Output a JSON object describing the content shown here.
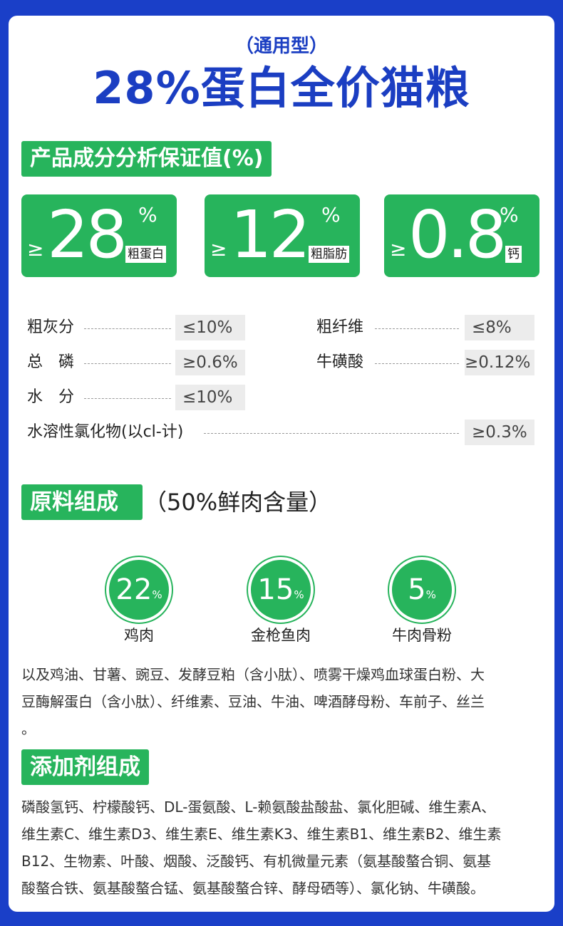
{
  "header": {
    "subtitle": "（通用型）",
    "title": "28%蛋白全价猫粮"
  },
  "analysis": {
    "tag": "产品成分分析保证值(%)",
    "highlights": [
      {
        "ge": "≥",
        "value": "28",
        "pct": "%",
        "label": "粗蛋白"
      },
      {
        "ge": "≥",
        "value": "12",
        "pct": "%",
        "label": "粗脂肪"
      },
      {
        "ge": "≥",
        "value": "0.8",
        "pct": "%",
        "label": "钙"
      }
    ],
    "rows": [
      {
        "label": "粗灰分",
        "value": "≤10%"
      },
      {
        "label": "粗纤维",
        "value": "≤8%"
      },
      {
        "label": "总　磷",
        "value": "≥0.6%"
      },
      {
        "label": "牛磺酸",
        "value": "≥0.12%"
      },
      {
        "label": "水　分",
        "value": "≤10%"
      },
      {
        "label": "水溶性氯化物(以cl-计)",
        "value": "≥0.3%"
      }
    ]
  },
  "raw": {
    "tag": "原料组成",
    "note": "（50%鲜肉含量）",
    "items": [
      {
        "value": "22",
        "pct": "%",
        "label": "鸡肉"
      },
      {
        "value": "15",
        "pct": "%",
        "label": "金枪鱼肉"
      },
      {
        "value": "5",
        "pct": "%",
        "label": "牛肉骨粉"
      }
    ],
    "text_lines": [
      "以及鸡油、甘薯、豌豆、发酵豆粕（含小肽）、喷雾干燥鸡血球蛋白粉、大",
      "豆酶解蛋白（含小肽）、纤维素、豆油、牛油、啤酒酵母粉、车前子、丝兰",
      "。"
    ]
  },
  "additives": {
    "tag": "添加剂组成",
    "text_lines": [
      "磷酸氢钙、柠檬酸钙、DL-蛋氨酸、L-赖氨酸盐酸盐、氯化胆碱、维生素A、",
      "维生素C、维生素D3、维生素E、维生素K3、维生素B1、维生素B2、维生素",
      "B12、生物素、叶酸、烟酸、泛酸钙、有机微量元素（氨基酸螯合铜、氨基",
      "酸螯合铁、氨基酸螯合锰、氨基酸螯合锌、酵母硒等）、氯化钠、牛磺酸。"
    ]
  },
  "colors": {
    "background_blue": "#1a3fc8",
    "title_blue": "#1b3ec2",
    "accent_green": "#27b45c"
  }
}
